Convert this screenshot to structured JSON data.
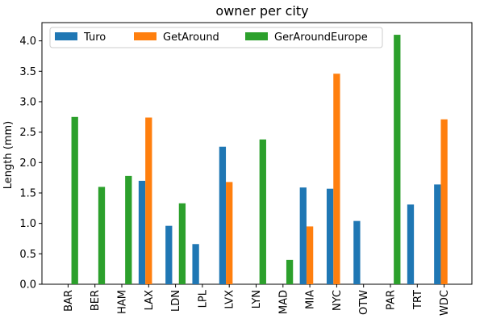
{
  "chart_data": {
    "type": "bar",
    "title": "owner per city",
    "xlabel": "",
    "ylabel": "Length (mm)",
    "ylim": [
      0,
      4.3
    ],
    "yticks": [
      "0.0",
      "0.5",
      "1.0",
      "1.5",
      "2.0",
      "2.5",
      "3.0",
      "3.5",
      "4.0"
    ],
    "grid": false,
    "legend_position": "top-left",
    "categories": [
      "BAR",
      "BER",
      "HAM",
      "LAX",
      "LDN",
      "LPL",
      "LVX",
      "LYN",
      "MAD",
      "MIA",
      "NYC",
      "OTW",
      "PAR",
      "TRT",
      "WDC"
    ],
    "series": [
      {
        "name": "Turo",
        "color": "#1f77b4",
        "values": [
          null,
          null,
          null,
          1.7,
          0.96,
          0.66,
          2.26,
          null,
          null,
          1.59,
          1.57,
          1.04,
          null,
          1.31,
          1.64
        ]
      },
      {
        "name": "GetAround",
        "color": "#ff7f0e",
        "values": [
          null,
          null,
          null,
          2.74,
          null,
          null,
          1.68,
          null,
          null,
          0.95,
          3.46,
          null,
          null,
          null,
          2.71
        ]
      },
      {
        "name": "GerAroundEurope",
        "color": "#2ca02c",
        "values": [
          2.75,
          1.6,
          1.78,
          null,
          1.33,
          null,
          null,
          2.38,
          0.4,
          null,
          null,
          null,
          4.1,
          null,
          null
        ]
      }
    ]
  }
}
